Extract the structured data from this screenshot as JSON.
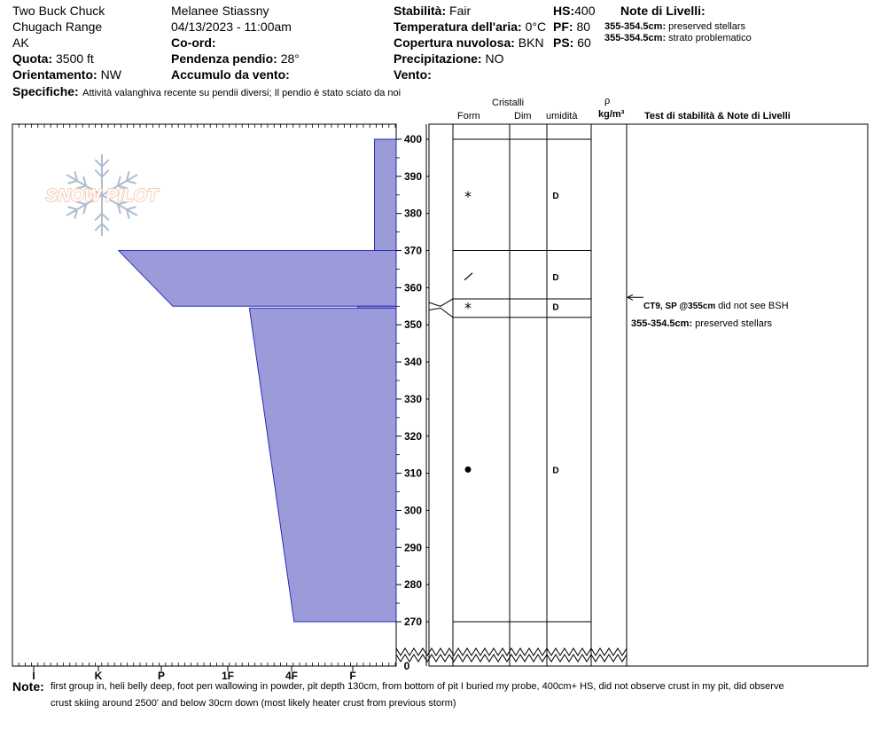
{
  "header": {
    "location": "Two Buck Chuck",
    "range": "Chugach Range",
    "state": "AK",
    "quota_label": "Quota:",
    "quota_value": "3500 ft",
    "orient_label": "Orientamento:",
    "orient_value": "NW",
    "specifiche_label": "Specifiche:",
    "specifiche_value": "Attività valanghiva recente su pendii diversi; Il pendio è stato sciato da noi",
    "observer": "Melanee Stiassny",
    "datetime": "04/13/2023 - 11:00am",
    "coord_label": "Co-ord:",
    "slope_label": "Pendenza pendio:",
    "slope_value": "28°",
    "wind_load_label": "Accumulo da vento:",
    "stability_label": "Stabilità:",
    "stability_value": "Fair",
    "air_temp_label": "Temperatura dell'aria:",
    "air_temp_value": "0°C",
    "cloud_label": "Copertura nuvolosa:",
    "cloud_value": "BKN",
    "precip_label": "Precipitazione:",
    "precip_value": "NO",
    "wind_label": "Vento:",
    "hs_label": "HS:",
    "hs_value": "400",
    "pf_label": "PF:",
    "pf_value": "80",
    "ps_label": "PS:",
    "ps_value": "60",
    "notes_title": "Note di Livelli:",
    "layer_notes": [
      {
        "range": "355-354.5cm:",
        "text": "preserved stellars"
      },
      {
        "range": "355-354.5cm:",
        "text": "strato problematico"
      }
    ]
  },
  "columns": {
    "cristalli": "Cristalli",
    "form": "Form",
    "dim": "Dim",
    "umidita": "umidità",
    "rho": "ρ",
    "density_unit": "kg/m³",
    "tests_title": "Test di stabilità & Note di Livelli"
  },
  "test_result": {
    "bold": "CT9, SP @355cm",
    "text": "did not see BSH",
    "layer_range": "355-354.5cm:",
    "layer_text": "preserved stellars"
  },
  "footer": {
    "note_label": "Note:",
    "note_line1": "first group in, heli belly deep, foot pen wallowing in powder, pit depth 130cm, from bottom of pit I buried my probe, 400cm+ HS, did not observe crust in my pit, did observe",
    "note_line2": "crust skiing around 2500' and below 30cm down (most likely heater crust from previous storm)"
  },
  "logo_text": "SNOW PILOT",
  "chart_data": {
    "type": "snow-profile",
    "y_axis_ticks": [
      400,
      390,
      380,
      370,
      360,
      350,
      340,
      330,
      320,
      310,
      300,
      290,
      280,
      270
    ],
    "y_axis_break_label": "0",
    "ylim": [
      270,
      400
    ],
    "hardness_scale": [
      "I",
      "K",
      "P",
      "1F",
      "4F",
      "F"
    ],
    "hardness_profile": [
      {
        "top": 400,
        "bottom": 370,
        "top_hardness": 0.34,
        "bottom_hardness": 0.34
      },
      {
        "top": 370,
        "bottom": 355,
        "top_hardness": 4.35,
        "bottom_hardness": 3.5
      },
      {
        "top": 355,
        "bottom": 354.5,
        "top_hardness": 0.6,
        "bottom_hardness": 0.6
      },
      {
        "top": 354.5,
        "bottom": 270,
        "top_hardness": 2.3,
        "bottom_hardness": 1.6
      }
    ],
    "layer_boundaries": [
      400,
      370,
      357,
      352,
      270
    ],
    "layers": [
      {
        "mid": 385,
        "form": "*",
        "wetness": "D"
      },
      {
        "mid": 363,
        "form": "/",
        "wetness": "D"
      },
      {
        "mid": 355,
        "form": "*",
        "wetness": "D"
      },
      {
        "mid": 311,
        "form": "•",
        "wetness": "D"
      }
    ],
    "test_marker_height": 355
  }
}
